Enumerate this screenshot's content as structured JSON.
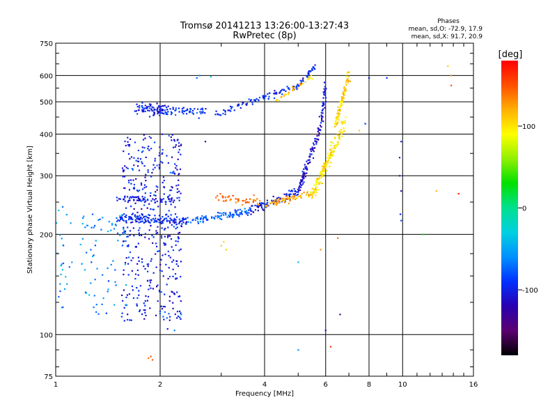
{
  "header": {
    "title_line1": "Tromsø 20141213 13:26:00-13:27:43",
    "title_line2": "RwPretec (8p)",
    "stats_title": "Phases",
    "stats_line1": "mean, sd,O: -72.9, 17.9",
    "stats_line2": "mean, sd,X:  91.7, 20.9"
  },
  "colorbar": {
    "label": "[deg]",
    "ticks": [
      "100",
      "0",
      "-100"
    ],
    "tick_values": [
      100,
      0,
      -100
    ],
    "range": [
      -180,
      180
    ],
    "colors": [
      "#000000",
      "#5a0070",
      "#2a00b0",
      "#0030ff",
      "#0090ff",
      "#00d0e0",
      "#00e090",
      "#00e000",
      "#90f000",
      "#ffff00",
      "#ffb000",
      "#ff5000",
      "#ff0000"
    ]
  },
  "chart_data": {
    "type": "scatter",
    "title": "Tromsø 20141213 13:26:00-13:27:43",
    "subtitle": "RwPretec (8p)",
    "xlabel": "Frequency [MHz]",
    "ylabel": "Stationary phase Virtual Height [km]",
    "x_scale": "log",
    "y_scale": "log",
    "xlim": [
      1,
      16
    ],
    "ylim": [
      75,
      750
    ],
    "x_ticks": [
      1,
      2,
      4,
      6,
      8,
      10,
      16
    ],
    "x_tick_labels": [
      "1",
      "2",
      "4",
      "6",
      "8",
      "10",
      "16"
    ],
    "y_ticks": [
      75,
      100,
      200,
      300,
      400,
      500,
      600,
      750
    ],
    "y_tick_labels": [
      "75",
      "100",
      "200",
      "300",
      "400",
      "500",
      "600",
      "750"
    ],
    "grid": true,
    "color_encodes": "phase [deg]",
    "traces": [
      {
        "x_start": 1.7,
        "x_end": 2.1,
        "y_start": 480,
        "y_end": 470,
        "phase": -100,
        "n": 90,
        "spread": 0.05
      },
      {
        "x_start": 2.1,
        "x_end": 2.7,
        "y_start": 470,
        "y_end": 465,
        "phase": -90,
        "n": 50,
        "spread": 0.04
      },
      {
        "x_start": 2.9,
        "x_end": 5.0,
        "y_start": 460,
        "y_end": 560,
        "phase": -95,
        "n": 90,
        "spread": 0.03
      },
      {
        "x_start": 5.0,
        "x_end": 5.6,
        "y_start": 560,
        "y_end": 640,
        "phase": -95,
        "n": 30,
        "spread": 0.03
      },
      {
        "x_start": 4.3,
        "x_end": 5.5,
        "y_start": 500,
        "y_end": 600,
        "phase": 110,
        "n": 30,
        "spread": 0.03
      },
      {
        "x_start": 1.5,
        "x_end": 2.4,
        "y_start": 225,
        "y_end": 218,
        "phase": -95,
        "n": 130,
        "spread": 0.04
      },
      {
        "x_start": 2.4,
        "x_end": 3.6,
        "y_start": 218,
        "y_end": 235,
        "phase": -75,
        "n": 90,
        "spread": 0.03
      },
      {
        "x_start": 3.6,
        "x_end": 5.0,
        "y_start": 235,
        "y_end": 270,
        "phase": -100,
        "n": 90,
        "spread": 0.04
      },
      {
        "x_start": 5.0,
        "x_end": 5.8,
        "y_start": 270,
        "y_end": 420,
        "phase": -110,
        "n": 90,
        "spread": 0.05
      },
      {
        "x_start": 5.8,
        "x_end": 6.0,
        "y_start": 420,
        "y_end": 560,
        "phase": -105,
        "n": 40,
        "spread": 0.05
      },
      {
        "x_start": 4.0,
        "x_end": 5.5,
        "y_start": 245,
        "y_end": 265,
        "phase": 120,
        "n": 70,
        "spread": 0.03
      },
      {
        "x_start": 5.5,
        "x_end": 6.8,
        "y_start": 265,
        "y_end": 430,
        "phase": 100,
        "n": 160,
        "spread": 0.06
      },
      {
        "x_start": 6.4,
        "x_end": 7.0,
        "y_start": 430,
        "y_end": 600,
        "phase": 105,
        "n": 90,
        "spread": 0.05
      },
      {
        "x_start": 2.9,
        "x_end": 3.9,
        "y_start": 260,
        "y_end": 250,
        "phase": 140,
        "n": 45,
        "spread": 0.04
      },
      {
        "x_start": 1.5,
        "x_end": 2.3,
        "y_start": 255,
        "y_end": 255,
        "phase": -100,
        "n": 60,
        "spread": 0.03
      }
    ],
    "blobs": [
      {
        "x_min": 1.55,
        "x_max": 2.3,
        "y_min": 110,
        "y_max": 400,
        "phase": -100,
        "n": 450
      },
      {
        "x_min": 1.15,
        "x_max": 1.6,
        "y_min": 115,
        "y_max": 230,
        "phase": -60,
        "n": 70
      },
      {
        "x_min": 1.0,
        "x_max": 1.12,
        "y_min": 115,
        "y_max": 245,
        "phase": -55,
        "n": 25
      }
    ],
    "singles": [
      {
        "x": 1.85,
        "y": 85,
        "phase": 140
      },
      {
        "x": 1.88,
        "y": 86,
        "phase": 150
      },
      {
        "x": 1.9,
        "y": 84,
        "phase": 145
      },
      {
        "x": 3.0,
        "y": 185,
        "phase": 110
      },
      {
        "x": 3.05,
        "y": 190,
        "phase": 105
      },
      {
        "x": 3.1,
        "y": 180,
        "phase": 110
      },
      {
        "x": 5.8,
        "y": 180,
        "phase": 130
      },
      {
        "x": 6.5,
        "y": 195,
        "phase": 140
      },
      {
        "x": 6.6,
        "y": 115,
        "phase": -140
      },
      {
        "x": 6.2,
        "y": 92,
        "phase": 160
      },
      {
        "x": 6.0,
        "y": 103,
        "phase": -110
      },
      {
        "x": 5.0,
        "y": 90,
        "phase": -60
      },
      {
        "x": 5.0,
        "y": 165,
        "phase": -40
      },
      {
        "x": 9.9,
        "y": 380,
        "phase": -100
      },
      {
        "x": 9.8,
        "y": 300,
        "phase": -100
      },
      {
        "x": 9.9,
        "y": 270,
        "phase": -120
      },
      {
        "x": 9.85,
        "y": 230,
        "phase": -100
      },
      {
        "x": 9.9,
        "y": 220,
        "phase": -80
      },
      {
        "x": 9.8,
        "y": 340,
        "phase": -100
      },
      {
        "x": 8.0,
        "y": 590,
        "phase": -100
      },
      {
        "x": 9.0,
        "y": 590,
        "phase": -90
      },
      {
        "x": 13.8,
        "y": 560,
        "phase": 150
      },
      {
        "x": 13.8,
        "y": 600,
        "phase": 130
      },
      {
        "x": 13.5,
        "y": 640,
        "phase": 110
      },
      {
        "x": 12.5,
        "y": 270,
        "phase": 120
      },
      {
        "x": 14.5,
        "y": 265,
        "phase": 170
      },
      {
        "x": 11.5,
        "y": 200,
        "phase": 30
      },
      {
        "x": 7.8,
        "y": 430,
        "phase": -90
      },
      {
        "x": 7.5,
        "y": 410,
        "phase": 110
      },
      {
        "x": 2.7,
        "y": 380,
        "phase": -130
      },
      {
        "x": 2.3,
        "y": 115,
        "phase": -60
      },
      {
        "x": 2.1,
        "y": 104,
        "phase": -110
      },
      {
        "x": 2.2,
        "y": 103,
        "phase": -60
      },
      {
        "x": 2.8,
        "y": 595,
        "phase": -40
      },
      {
        "x": 2.6,
        "y": 600,
        "phase": -60
      },
      {
        "x": 2.55,
        "y": 590,
        "phase": -70
      }
    ]
  }
}
